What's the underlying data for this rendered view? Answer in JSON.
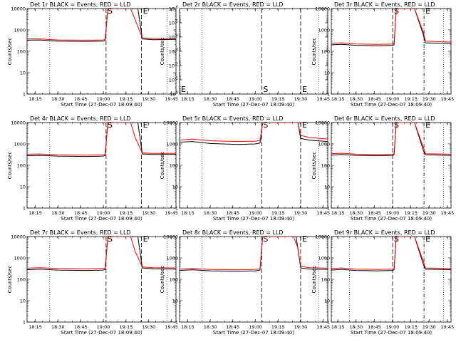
{
  "figure": {
    "events_color": "#000000",
    "lld_color": "#ff0000"
  },
  "chart_data": [
    {
      "type": "line",
      "title": "Det 1r BLACK = Events, RED = LLD",
      "xlabel": "Start Time (27-Dec-07 18:09:40)",
      "ylabel": "Counts/sec",
      "yscale": "log",
      "ylim": [
        1,
        10000
      ],
      "xtick_labels": [
        "18:15",
        "18:30",
        "18:45",
        "19:00",
        "19:15",
        "19:30",
        "19:45"
      ],
      "xticks": [
        18.25,
        18.5,
        18.75,
        19.0,
        19.25,
        19.5,
        19.75
      ],
      "xlim": [
        18.16,
        19.8
      ],
      "ytick_labels": [
        "1",
        "10",
        "100",
        "1000",
        "10000"
      ],
      "yticks": [
        1,
        10,
        100,
        1000,
        10000
      ],
      "markers": [
        {
          "label": "S",
          "x": 19.03,
          "style": "dashed"
        },
        {
          "label": "E",
          "x": 19.42,
          "style": "dashed"
        }
      ],
      "dotted_x": [
        18.41,
        19.7
      ],
      "series": [
        {
          "name": "Events",
          "color": "#000000",
          "x": [
            18.16,
            18.3,
            18.5,
            18.8,
            19.0,
            19.02,
            19.05,
            19.38,
            19.43,
            19.55,
            19.8
          ],
          "y": [
            330,
            340,
            300,
            290,
            300,
            320,
            10000,
            10000,
            380,
            350,
            360
          ]
        },
        {
          "name": "LLD",
          "color": "#ff0000",
          "x": [
            18.16,
            18.3,
            18.5,
            18.8,
            19.0,
            19.02,
            19.05,
            19.3,
            19.35,
            19.43,
            19.55,
            19.8
          ],
          "y": [
            380,
            380,
            340,
            330,
            340,
            360,
            10000,
            10000,
            3000,
            420,
            400,
            400
          ]
        }
      ]
    },
    {
      "type": "line",
      "title": "Det 2r BLACK = Events, RED = LLD",
      "xlabel": "Start Time (27-Dec-07 18:09:40)",
      "ylabel": "Counts/sec",
      "yscale": "log",
      "ylim": [
        1,
        1e-06
      ],
      "xtick_labels": [
        "18:15",
        "18:30",
        "18:45",
        "19:00",
        "19:15",
        "19:30",
        "19:45"
      ],
      "xticks": [
        18.25,
        18.5,
        18.75,
        19.0,
        19.25,
        19.5,
        19.75
      ],
      "xlim": [
        18.16,
        19.8
      ],
      "ytick_labels": [
        "10^0",
        "10^-1",
        "10^-2",
        "10^-3",
        "10^-4",
        "10^-5",
        "10^-6"
      ],
      "yticks": [
        1,
        0.1,
        0.01,
        0.001,
        0.0001,
        1e-05,
        1e-06
      ],
      "markers": [
        {
          "label": "E",
          "x": 18.16,
          "style": "dashed"
        },
        {
          "label": "S",
          "x": 19.07,
          "style": "dashed"
        },
        {
          "label": "E",
          "x": 19.5,
          "style": "dashed"
        }
      ],
      "dotted_x": [
        18.41,
        19.7
      ],
      "series": []
    },
    {
      "type": "line",
      "title": "Det 3r BLACK = Events, RED = LLD",
      "xlabel": "Start Time (27-Dec-07 18:09:40)",
      "ylabel": "Counts/sec",
      "yscale": "log",
      "ylim": [
        1,
        10000
      ],
      "xtick_labels": [
        "18:15",
        "18:30",
        "18:45",
        "19:00",
        "19:15",
        "19:30",
        "19:45"
      ],
      "xticks": [
        18.25,
        18.5,
        18.75,
        19.0,
        19.25,
        19.5,
        19.75
      ],
      "xlim": [
        18.16,
        19.8
      ],
      "ytick_labels": [
        "1",
        "10",
        "100",
        "1000",
        "10000"
      ],
      "yticks": [
        1,
        10,
        100,
        1000,
        10000
      ],
      "markers": [
        {
          "label": "S",
          "x": 19.0,
          "style": "dashed"
        },
        {
          "label": "E",
          "x": 19.43,
          "style": "dashdot"
        }
      ],
      "dotted_x": [
        18.41,
        19.7
      ],
      "series": [
        {
          "name": "Events",
          "color": "#000000",
          "x": [
            18.16,
            18.3,
            18.5,
            18.8,
            19.0,
            19.02,
            19.05,
            19.3,
            19.42,
            19.45,
            19.8
          ],
          "y": [
            200,
            210,
            190,
            180,
            190,
            200,
            10000,
            10000,
            600,
            250,
            230
          ]
        },
        {
          "name": "LLD",
          "color": "#ff0000",
          "x": [
            18.16,
            18.3,
            18.5,
            18.8,
            19.0,
            19.02,
            19.05,
            19.3,
            19.42,
            19.45,
            19.8
          ],
          "y": [
            240,
            250,
            220,
            210,
            220,
            240,
            10000,
            10000,
            800,
            300,
            270
          ]
        }
      ]
    },
    {
      "type": "line",
      "title": "Det 4r BLACK = Events, RED = LLD",
      "xlabel": "Start Time (27-Dec-07 18:09:40)",
      "ylabel": "Counts/sec",
      "yscale": "log",
      "ylim": [
        1,
        10000
      ],
      "xtick_labels": [
        "18:15",
        "18:30",
        "18:45",
        "19:00",
        "19:15",
        "19:30",
        "19:45"
      ],
      "xticks": [
        18.25,
        18.5,
        18.75,
        19.0,
        19.25,
        19.5,
        19.75
      ],
      "xlim": [
        18.16,
        19.8
      ],
      "ytick_labels": [
        "1",
        "10",
        "100",
        "1000",
        "10000"
      ],
      "yticks": [
        1,
        10,
        100,
        1000,
        10000
      ],
      "markers": [
        {
          "label": "S",
          "x": 19.03,
          "style": "dashed"
        },
        {
          "label": "E",
          "x": 19.42,
          "style": "dashed"
        }
      ],
      "dotted_x": [
        18.41,
        19.7
      ],
      "series": [
        {
          "name": "Events",
          "color": "#000000",
          "x": [
            18.16,
            18.3,
            18.5,
            18.8,
            19.0,
            19.02,
            19.05,
            19.38,
            19.43,
            19.55,
            19.8
          ],
          "y": [
            280,
            290,
            270,
            260,
            270,
            290,
            10000,
            10000,
            340,
            320,
            320
          ]
        },
        {
          "name": "LLD",
          "color": "#ff0000",
          "x": [
            18.16,
            18.3,
            18.5,
            18.8,
            19.0,
            19.02,
            19.05,
            19.3,
            19.35,
            19.43,
            19.55,
            19.8
          ],
          "y": [
            330,
            340,
            310,
            300,
            310,
            330,
            10000,
            10000,
            2000,
            380,
            360,
            360
          ]
        }
      ]
    },
    {
      "type": "line",
      "title": "Det 5r BLACK = Events, RED = LLD",
      "xlabel": "Start Time (27-Dec-07 18:09:40)",
      "ylabel": "Counts/sec",
      "yscale": "log",
      "ylim": [
        1,
        10000
      ],
      "xtick_labels": [
        "18:15",
        "18:30",
        "18:45",
        "19:00",
        "19:15",
        "19:30",
        "19:45"
      ],
      "xticks": [
        18.25,
        18.5,
        18.75,
        19.0,
        19.25,
        19.5,
        19.75
      ],
      "xlim": [
        18.16,
        19.8
      ],
      "ytick_labels": [
        "1",
        "10",
        "100",
        "1000",
        "10000"
      ],
      "yticks": [
        1,
        10,
        100,
        1000,
        10000
      ],
      "markers": [
        {
          "label": "S",
          "x": 19.07,
          "style": "dashed"
        },
        {
          "label": "E",
          "x": 19.5,
          "style": "dashed"
        }
      ],
      "dotted_x": [
        18.41,
        19.7
      ],
      "series": [
        {
          "name": "Events",
          "color": "#000000",
          "x": [
            18.16,
            18.3,
            18.5,
            18.8,
            19.0,
            19.05,
            19.08,
            19.47,
            19.5,
            19.6,
            19.8
          ],
          "y": [
            1200,
            1300,
            1050,
            950,
            1000,
            1100,
            10000,
            10000,
            1800,
            1500,
            1300
          ]
        },
        {
          "name": "LLD",
          "color": "#ff0000",
          "x": [
            18.16,
            18.3,
            18.5,
            18.8,
            19.0,
            19.05,
            19.08,
            19.47,
            19.5,
            19.6,
            19.8
          ],
          "y": [
            1500,
            1700,
            1400,
            1300,
            1350,
            1450,
            10000,
            10000,
            2500,
            2000,
            1700
          ]
        }
      ]
    },
    {
      "type": "line",
      "title": "Det 6r BLACK = Events, RED = LLD",
      "xlabel": "Start Time (27-Dec-07 18:09:40)",
      "ylabel": "Counts/sec",
      "yscale": "log",
      "ylim": [
        1,
        10000
      ],
      "xtick_labels": [
        "18:15",
        "18:30",
        "18:45",
        "19:00",
        "19:15",
        "19:30",
        "19:45"
      ],
      "xticks": [
        18.25,
        18.5,
        18.75,
        19.0,
        19.25,
        19.5,
        19.75
      ],
      "xlim": [
        18.16,
        19.8
      ],
      "ytick_labels": [
        "1",
        "10",
        "100",
        "1000",
        "10000"
      ],
      "yticks": [
        1,
        10,
        100,
        1000,
        10000
      ],
      "markers": [
        {
          "label": "S",
          "x": 19.0,
          "style": "dashed"
        },
        {
          "label": "E",
          "x": 19.43,
          "style": "dashdot"
        }
      ],
      "dotted_x": [
        18.41,
        19.7
      ],
      "series": [
        {
          "name": "Events",
          "color": "#000000",
          "x": [
            18.16,
            18.3,
            18.5,
            18.8,
            19.0,
            19.02,
            19.05,
            19.3,
            19.42,
            19.45,
            19.8
          ],
          "y": [
            300,
            320,
            290,
            280,
            290,
            310,
            10000,
            10000,
            500,
            310,
            290
          ]
        },
        {
          "name": "LLD",
          "color": "#ff0000",
          "x": [
            18.16,
            18.3,
            18.5,
            18.8,
            19.0,
            19.02,
            19.05,
            19.3,
            19.42,
            19.45,
            19.8
          ],
          "y": [
            350,
            370,
            330,
            320,
            330,
            350,
            10000,
            10000,
            700,
            350,
            330
          ]
        }
      ]
    },
    {
      "type": "line",
      "title": "Det 7r BLACK = Events, RED = LLD",
      "xlabel": "Start Time (27-Dec-07 18:09:40)",
      "ylabel": "Counts/sec",
      "yscale": "log",
      "ylim": [
        1,
        10000
      ],
      "xtick_labels": [
        "18:15",
        "18:30",
        "18:45",
        "19:00",
        "19:15",
        "19:30",
        "19:45"
      ],
      "xticks": [
        18.25,
        18.5,
        18.75,
        19.0,
        19.25,
        19.5,
        19.75
      ],
      "xlim": [
        18.16,
        19.8
      ],
      "ytick_labels": [
        "1",
        "10",
        "100",
        "1000",
        "10000"
      ],
      "yticks": [
        1,
        10,
        100,
        1000,
        10000
      ],
      "markers": [
        {
          "label": "S",
          "x": 19.03,
          "style": "dashed"
        },
        {
          "label": "E",
          "x": 19.42,
          "style": "dashed"
        }
      ],
      "dotted_x": [
        18.41,
        19.7
      ],
      "series": [
        {
          "name": "Events",
          "color": "#000000",
          "x": [
            18.16,
            18.3,
            18.5,
            18.8,
            19.0,
            19.02,
            19.05,
            19.38,
            19.43,
            19.55,
            19.8
          ],
          "y": [
            280,
            300,
            270,
            260,
            270,
            290,
            10000,
            10000,
            340,
            310,
            300
          ]
        },
        {
          "name": "LLD",
          "color": "#ff0000",
          "x": [
            18.16,
            18.3,
            18.5,
            18.8,
            19.0,
            19.02,
            19.05,
            19.3,
            19.35,
            19.43,
            19.55,
            19.8
          ],
          "y": [
            330,
            350,
            320,
            310,
            320,
            340,
            10000,
            10000,
            2000,
            380,
            350,
            340
          ]
        }
      ]
    },
    {
      "type": "line",
      "title": "Det 8r BLACK = Events, RED = LLD",
      "xlabel": "Start Time (27-Dec-07 18:09:40)",
      "ylabel": "Counts/sec",
      "yscale": "log",
      "ylim": [
        1,
        10000
      ],
      "xtick_labels": [
        "18:15",
        "18:30",
        "18:45",
        "19:00",
        "19:15",
        "19:30",
        "19:45"
      ],
      "xticks": [
        18.25,
        18.5,
        18.75,
        19.0,
        19.25,
        19.5,
        19.75
      ],
      "xlim": [
        18.16,
        19.8
      ],
      "ytick_labels": [
        "1",
        "10",
        "100",
        "1000",
        "10000"
      ],
      "yticks": [
        1,
        10,
        100,
        1000,
        10000
      ],
      "markers": [
        {
          "label": "S",
          "x": 19.07,
          "style": "dashed"
        },
        {
          "label": "E",
          "x": 19.5,
          "style": "dashed"
        }
      ],
      "dotted_x": [
        18.41,
        19.7
      ],
      "series": [
        {
          "name": "Events",
          "color": "#000000",
          "x": [
            18.16,
            18.3,
            18.5,
            18.8,
            19.0,
            19.05,
            19.08,
            19.45,
            19.5,
            19.6,
            19.8
          ],
          "y": [
            260,
            280,
            250,
            240,
            250,
            270,
            10000,
            10000,
            340,
            300,
            290
          ]
        },
        {
          "name": "LLD",
          "color": "#ff0000",
          "x": [
            18.16,
            18.3,
            18.5,
            18.8,
            19.0,
            19.05,
            19.08,
            19.42,
            19.47,
            19.5,
            19.6,
            19.8
          ],
          "y": [
            300,
            320,
            290,
            280,
            290,
            310,
            10000,
            10000,
            3000,
            400,
            350,
            330
          ]
        }
      ]
    },
    {
      "type": "line",
      "title": "Det 9r BLACK = Events, RED = LLD",
      "xlabel": "Start Time (27-Dec-07 18:09:40)",
      "ylabel": "Counts/sec",
      "yscale": "log",
      "ylim": [
        1,
        10000
      ],
      "xtick_labels": [
        "18:15",
        "18:30",
        "18:45",
        "19:00",
        "19:15",
        "19:30",
        "19:45"
      ],
      "xticks": [
        18.25,
        18.5,
        18.75,
        19.0,
        19.25,
        19.5,
        19.75
      ],
      "xlim": [
        18.16,
        19.8
      ],
      "ytick_labels": [
        "1",
        "10",
        "100",
        "1000",
        "10000"
      ],
      "yticks": [
        1,
        10,
        100,
        1000,
        10000
      ],
      "markers": [
        {
          "label": "S",
          "x": 19.0,
          "style": "dashed"
        },
        {
          "label": "E",
          "x": 19.43,
          "style": "dashdot"
        }
      ],
      "dotted_x": [
        18.41,
        19.7
      ],
      "series": [
        {
          "name": "Events",
          "color": "#000000",
          "x": [
            18.16,
            18.3,
            18.5,
            18.8,
            19.0,
            19.02,
            19.05,
            19.3,
            19.42,
            19.45,
            19.8
          ],
          "y": [
            270,
            290,
            260,
            250,
            260,
            280,
            10000,
            10000,
            500,
            300,
            280
          ]
        },
        {
          "name": "LLD",
          "color": "#ff0000",
          "x": [
            18.16,
            18.3,
            18.5,
            18.8,
            19.0,
            19.02,
            19.05,
            19.3,
            19.42,
            19.45,
            19.8
          ],
          "y": [
            320,
            340,
            300,
            290,
            300,
            320,
            10000,
            10000,
            700,
            340,
            320
          ]
        }
      ]
    }
  ]
}
